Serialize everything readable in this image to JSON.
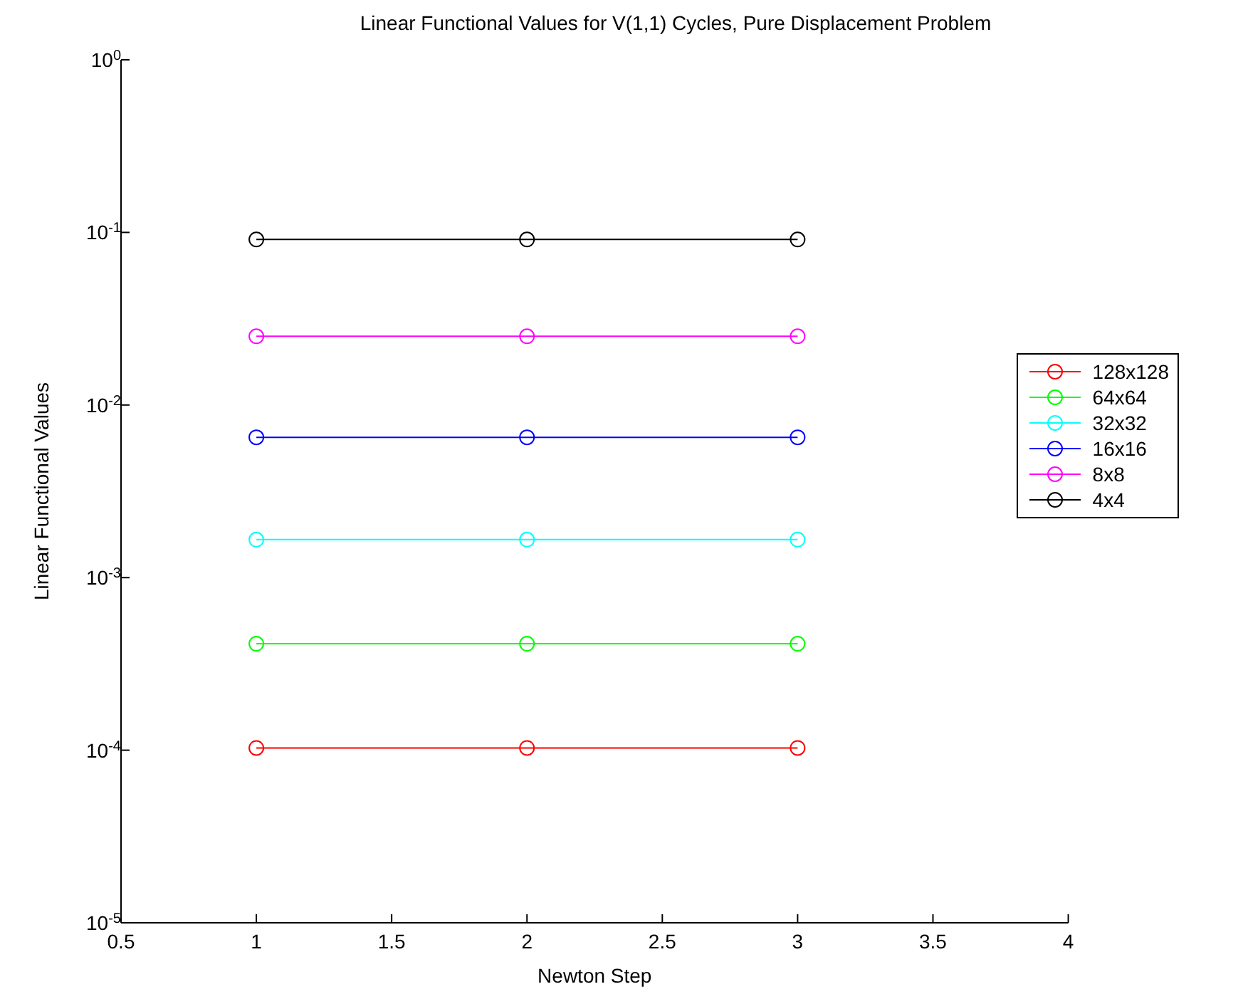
{
  "chart_data": {
    "type": "line",
    "title": "Linear Functional Values for V(1,1) Cycles, Pure Displacement Problem",
    "xlabel": "Newton Step",
    "ylabel": "Linear Functional Values",
    "x": [
      1,
      2,
      3
    ],
    "series": [
      {
        "name": "128x128",
        "color": "#ff0000",
        "values": [
          0.000103,
          0.000103,
          0.000103
        ]
      },
      {
        "name": "64x64",
        "color": "#00ff00",
        "values": [
          0.000414,
          0.000414,
          0.000414
        ]
      },
      {
        "name": "32x32",
        "color": "#00ffff",
        "values": [
          0.00166,
          0.00166,
          0.00166
        ]
      },
      {
        "name": "16x16",
        "color": "#0000ff",
        "values": [
          0.0065,
          0.0065,
          0.0065
        ]
      },
      {
        "name": "8x8",
        "color": "#ff00ff",
        "values": [
          0.025,
          0.025,
          0.025
        ]
      },
      {
        "name": "4x4",
        "color": "#000000",
        "values": [
          0.091,
          0.091,
          0.091
        ]
      }
    ],
    "log": "y",
    "xlim": [
      0.5,
      4
    ],
    "xticks": [
      0.5,
      1,
      1.5,
      2,
      2.5,
      3,
      3.5,
      4
    ],
    "ylim": [
      1e-05,
      1
    ],
    "yticks": [
      {
        "value": 1e-05,
        "label": "10$^{-5}$"
      },
      {
        "value": 0.0001,
        "label": "10$^{-4}$"
      },
      {
        "value": 0.001,
        "label": "10$^{-3}$"
      },
      {
        "value": 0.01,
        "label": "10$^{-2}$"
      },
      {
        "value": 0.1,
        "label": "10$^{-1}$"
      },
      {
        "value": 1,
        "label": "10$^{0}$"
      }
    ],
    "grid": false,
    "legend": "right",
    "marker": "circle",
    "line_style": "solid"
  }
}
